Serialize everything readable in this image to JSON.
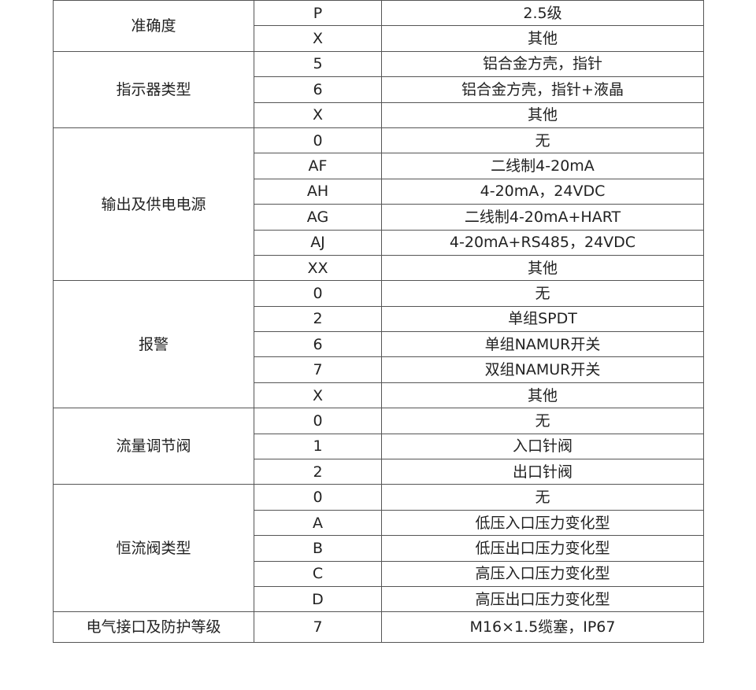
{
  "groups": [
    {
      "label": "准确度",
      "rows": [
        [
          "P",
          "2.5级"
        ],
        [
          "X",
          "其他"
        ]
      ]
    },
    {
      "label": "指示器类型",
      "rows": [
        [
          "5",
          "铝合金方壳，指针"
        ],
        [
          "6",
          "铝合金方壳，指针+液晶"
        ],
        [
          "X",
          "其他"
        ]
      ]
    },
    {
      "label": "输出及供电电源",
      "rows": [
        [
          "0",
          "无"
        ],
        [
          "AF",
          "二线制4-20mA"
        ],
        [
          "AH",
          "4-20mA，24VDC"
        ],
        [
          "AG",
          "二线制4-20mA+HART"
        ],
        [
          "AJ",
          "4-20mA+RS485，24VDC"
        ],
        [
          "XX",
          "其他"
        ]
      ]
    },
    {
      "label": "报警",
      "rows": [
        [
          "0",
          "无"
        ],
        [
          "2",
          "单组SPDT"
        ],
        [
          "6",
          "单组NAMUR开关"
        ],
        [
          "7",
          "双组NAMUR开关"
        ],
        [
          "X",
          "其他"
        ]
      ]
    },
    {
      "label": "流量调节阀",
      "rows": [
        [
          "0",
          "无"
        ],
        [
          "1",
          "入口针阀"
        ],
        [
          "2",
          "出口针阀"
        ]
      ]
    },
    {
      "label": "恒流阀类型",
      "rows": [
        [
          "0",
          "无"
        ],
        [
          "A",
          "低压入口压力变化型"
        ],
        [
          "B",
          "低压出口压力变化型"
        ],
        [
          "C",
          "高压入口压力变化型"
        ],
        [
          "D",
          "高压出口压力变化型"
        ]
      ]
    },
    {
      "label": "电气接口及防护等级",
      "rows": [
        [
          "7",
          "M16×1.5缆塞，IP67"
        ]
      ]
    }
  ]
}
